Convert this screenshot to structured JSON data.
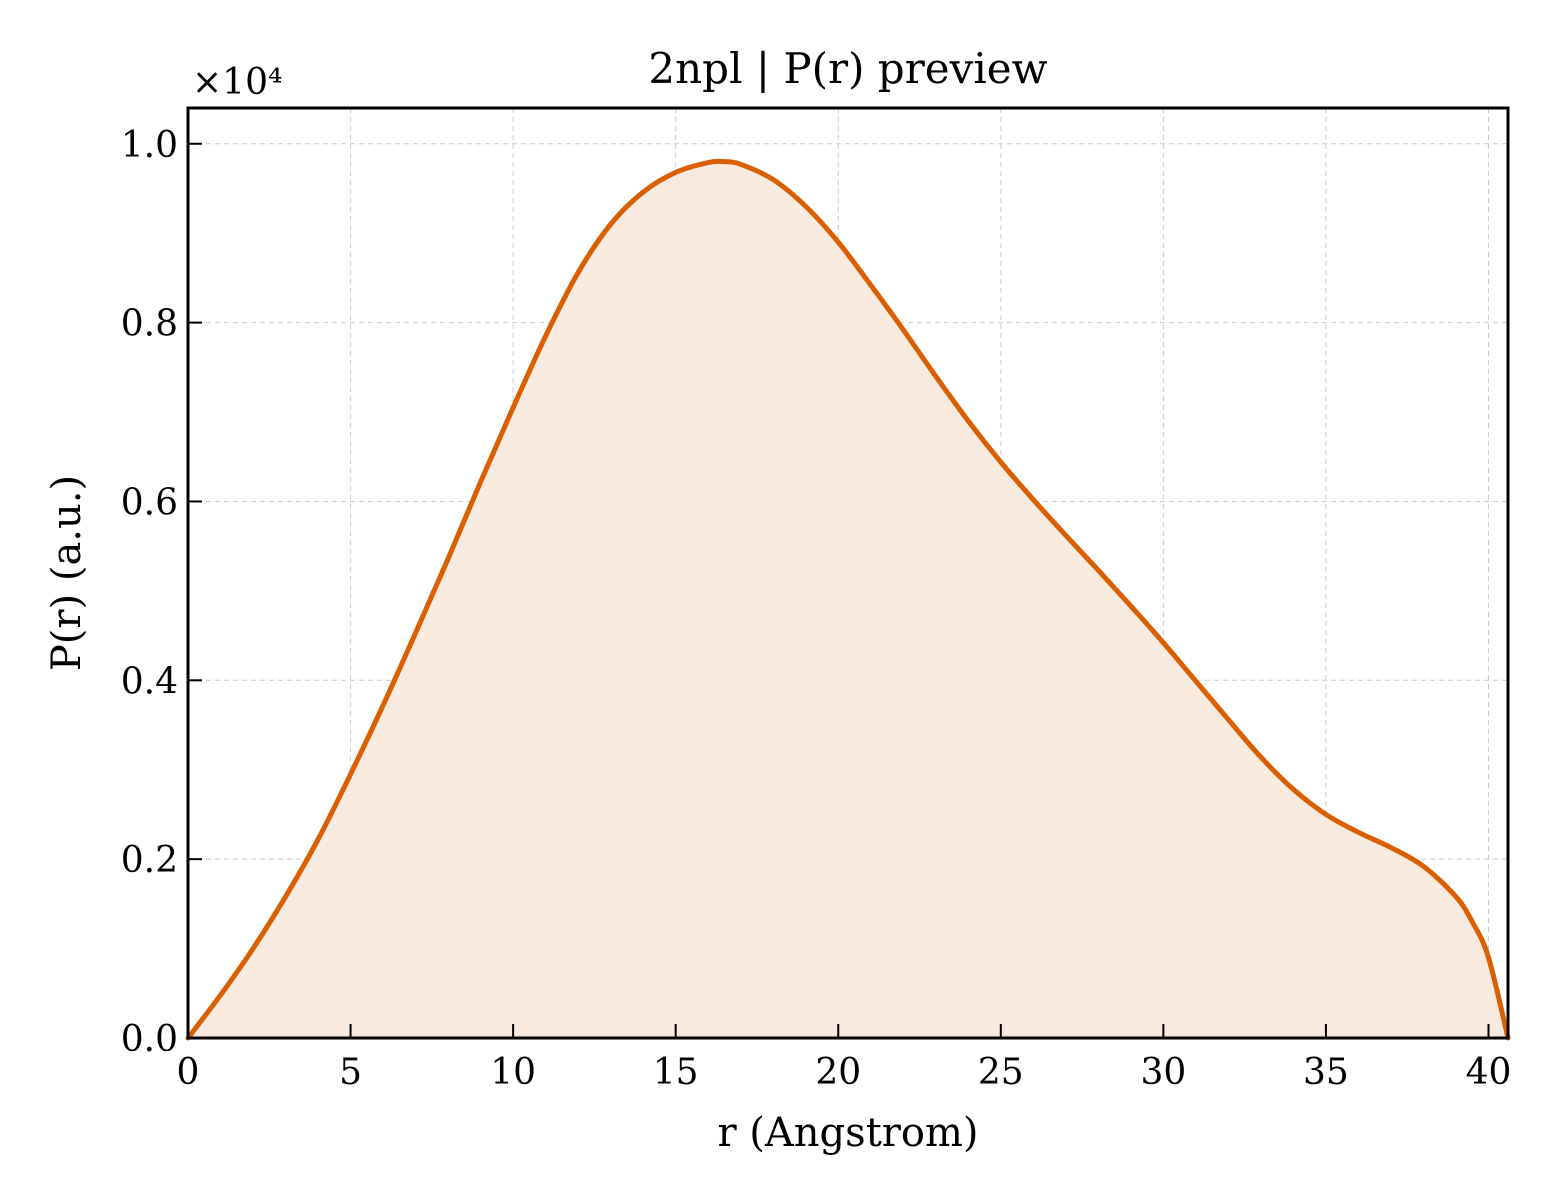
{
  "chart_data": {
    "type": "area",
    "title": "2npl | P(r) preview",
    "xlabel": "r (Angstrom)",
    "ylabel": "P(r) (a.u.)",
    "y_multiplier_label": "×10⁴",
    "xlim": [
      0,
      40.6
    ],
    "ylim": [
      0,
      10400
    ],
    "xticks": [
      0,
      5,
      10,
      15,
      20,
      25,
      30,
      35,
      40
    ],
    "yticks": [
      0,
      2000,
      4000,
      6000,
      8000,
      10000
    ],
    "yticklabels": [
      "0.0",
      "0.2",
      "0.4",
      "0.6",
      "0.8",
      "1.0"
    ],
    "grid": true,
    "line_color": "#d95f02",
    "fill_color": "#f9eadf",
    "series": [
      {
        "x": [
          0,
          1,
          2,
          3,
          4,
          5,
          6,
          7,
          8,
          9,
          10,
          11,
          12,
          13,
          14,
          15,
          16,
          16.5,
          17,
          18,
          19,
          20,
          21,
          22,
          23,
          24,
          25,
          26,
          27,
          28,
          29,
          30,
          31,
          32,
          33,
          34,
          35,
          36,
          37,
          38,
          39,
          39.5,
          40,
          40.6
        ],
        "y": [
          0,
          480,
          1000,
          1580,
          2220,
          2950,
          3720,
          4530,
          5360,
          6220,
          7050,
          7850,
          8560,
          9100,
          9460,
          9680,
          9790,
          9800,
          9770,
          9600,
          9300,
          8900,
          8420,
          7920,
          7400,
          6900,
          6440,
          6020,
          5620,
          5230,
          4830,
          4420,
          3990,
          3560,
          3140,
          2780,
          2500,
          2300,
          2130,
          1920,
          1580,
          1300,
          900,
          0
        ]
      }
    ]
  }
}
